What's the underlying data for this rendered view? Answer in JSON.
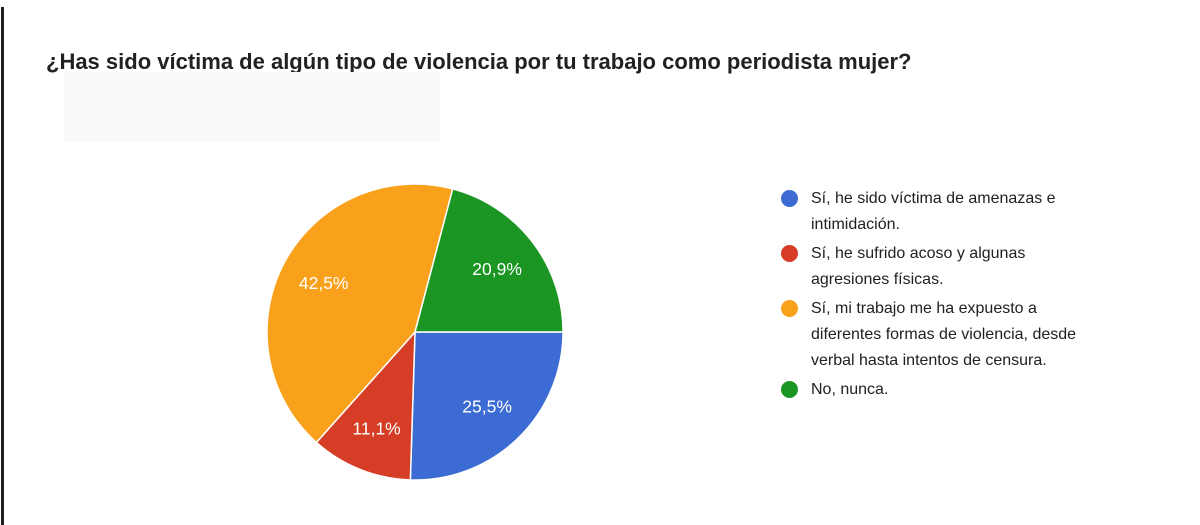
{
  "header": {
    "title": "¿Has sido víctima de algún tipo de violencia por tu trabajo como periodista mujer?"
  },
  "chart_data": {
    "type": "pie",
    "title": "¿Has sido víctima de algún tipo de violencia por tu trabajo como periodista mujer?",
    "legend_position": "right",
    "start_angle_deg": 90,
    "clockwise": true,
    "values_are_percent": true,
    "label_color": "#ffffff",
    "slice_border_color": "#ffffff",
    "slices": [
      {
        "label": "Sí, he sido víctima de amenazas e\nintimidación.",
        "value": 25.5,
        "display_value": "25,5%",
        "color": "#3B6BD3"
      },
      {
        "label": "Sí, he sufrido acoso y algunas\nagresiones físicas.",
        "value": 11.1,
        "display_value": "11,1%",
        "color": "#D53D26"
      },
      {
        "label": "Sí, mi trabajo me ha expuesto a\ndiferentes formas de violencia, desde\nverbal hasta intentos de censura.",
        "value": 42.5,
        "display_value": "42,5%",
        "color": "#F9A11B"
      },
      {
        "label": "No, nunca.",
        "value": 20.9,
        "display_value": "20,9%",
        "color": "#1B9623"
      }
    ]
  }
}
